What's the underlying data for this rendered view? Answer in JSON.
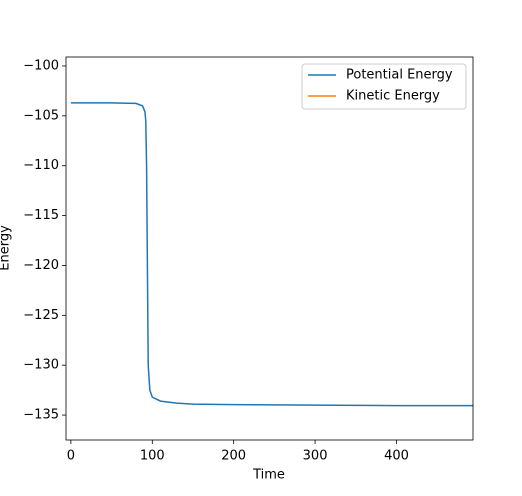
{
  "chart_data": {
    "type": "line",
    "x_label": "Time",
    "y_label": "Energy",
    "x": [
      0,
      50,
      80,
      88,
      91,
      92,
      93,
      94,
      95,
      97,
      100,
      110,
      130,
      150,
      200,
      300,
      400,
      494
    ],
    "series": [
      {
        "name": "Potential Energy",
        "color": "#1f77b4",
        "values": [
          -103.7,
          -103.7,
          -103.75,
          -104,
          -104.6,
          -105.5,
          -110,
          -120,
          -130,
          -132.5,
          -133.2,
          -133.6,
          -133.8,
          -133.9,
          -133.95,
          -134,
          -134.05,
          -134.05
        ]
      },
      {
        "name": "Kinetic Energy",
        "color": "#ff7f0e",
        "values": [
          null,
          null,
          null,
          null,
          null,
          null,
          null,
          null,
          null,
          null,
          null,
          null,
          null,
          null,
          null,
          null,
          null,
          null
        ]
      }
    ],
    "xlim": [
      -6,
      494
    ],
    "ylim": [
      -137.5,
      -99.1
    ],
    "xticks": [
      0,
      100,
      200,
      300,
      400
    ],
    "yticks": [
      {
        "value": -135,
        "label": "−135"
      },
      {
        "value": -130,
        "label": "−130"
      },
      {
        "value": -125,
        "label": "−125"
      },
      {
        "value": -120,
        "label": "−120"
      },
      {
        "value": -115,
        "label": "−115"
      },
      {
        "value": -110,
        "label": "−110"
      },
      {
        "value": -105,
        "label": "−105"
      },
      {
        "value": -100,
        "label": "−100"
      }
    ],
    "legend": "upper right"
  }
}
